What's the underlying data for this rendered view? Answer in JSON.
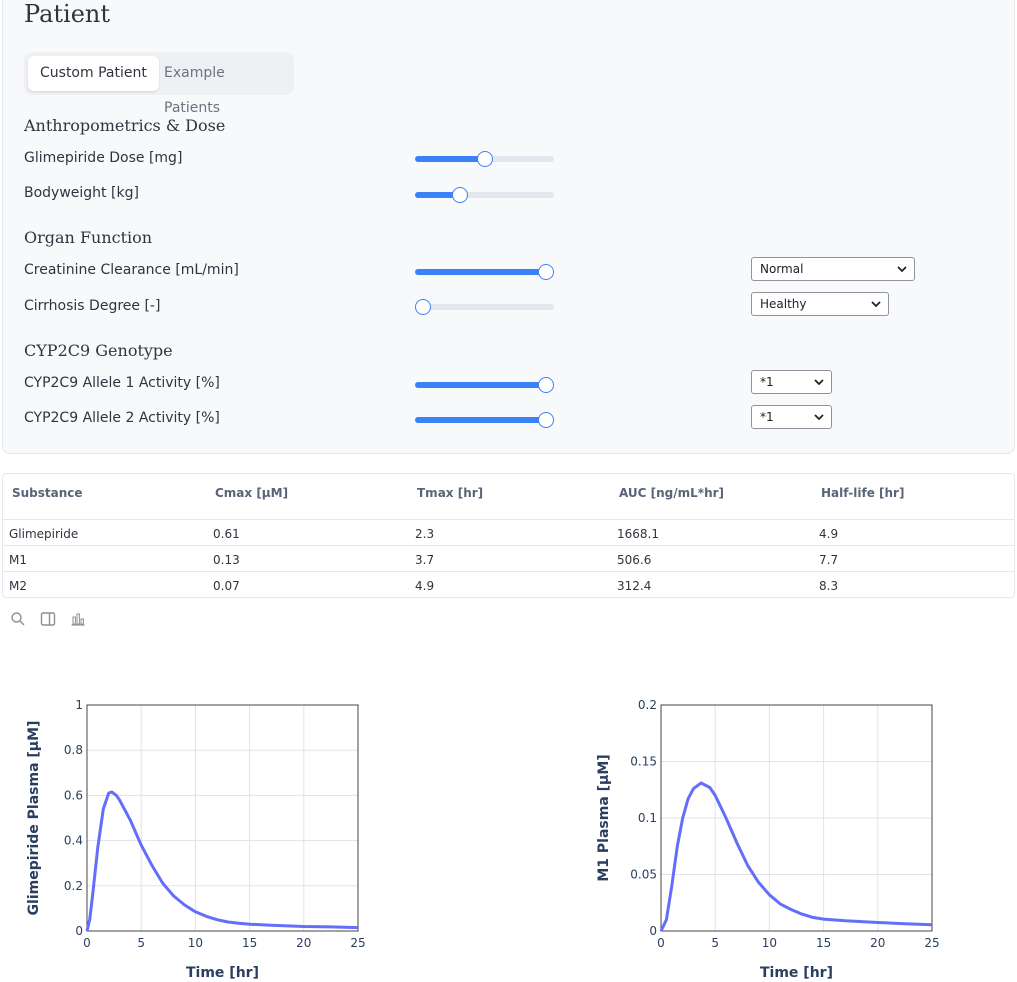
{
  "patient": {
    "title": "Patient",
    "tabs": [
      {
        "label": "Custom Patient",
        "active": true
      },
      {
        "label": "Example Patients",
        "active": false
      }
    ],
    "sections": {
      "anthropometrics": "Anthropometrics & Dose",
      "organ": "Organ Function",
      "cyp": "CYP2C9 Genotype"
    },
    "sliders": {
      "dose": {
        "label": "Glimepiride Dose [mg]",
        "level": 0.5
      },
      "bodyweight": {
        "label": "Bodyweight [kg]",
        "level": 0.3
      },
      "creatinine": {
        "label": "Creatinine Clearance [mL/min]",
        "level": 1.0
      },
      "cirrhosis": {
        "label": "Cirrhosis Degree [-]",
        "level": 0.0
      },
      "allele1": {
        "label": "CYP2C9 Allele 1 Activity [%]",
        "level": 1.0
      },
      "allele2": {
        "label": "CYP2C9 Allele 2 Activity [%]",
        "level": 1.0
      }
    },
    "selects": {
      "renal": "Normal",
      "hepatic": "Healthy",
      "allele1": "*1",
      "allele2": "*1"
    }
  },
  "results_table": {
    "headers": [
      "Substance",
      "Cmax [µM]",
      "Tmax [hr]",
      "AUC [ng/mL*hr]",
      "Half-life [hr]"
    ],
    "rows": [
      [
        "Glimepiride",
        "0.61",
        "2.3",
        "1668.1",
        "4.9"
      ],
      [
        "M1",
        "0.13",
        "3.7",
        "506.6",
        "7.7"
      ],
      [
        "M2",
        "0.07",
        "4.9",
        "312.4",
        "8.3"
      ]
    ]
  },
  "toolbar": {
    "icons": [
      "search-icon",
      "sidebar-panel-icon",
      "bar-chart-icon"
    ]
  },
  "colors": {
    "accent": "#3b82f6",
    "curve": "#636efa",
    "axis_text": "#2a3f5f"
  },
  "chart_data": [
    {
      "type": "line",
      "title": "",
      "xlabel": "Time [hr]",
      "ylabel": "Glimepiride Plasma [µM]",
      "xlim": [
        0,
        25
      ],
      "ylim": [
        0,
        1
      ],
      "xticks": [
        0,
        5,
        10,
        15,
        20,
        25
      ],
      "yticks": [
        0,
        0.2,
        0.4,
        0.6,
        0.8,
        1
      ],
      "ytick_labels": [
        "0",
        "0.2",
        "0.4",
        "0.6",
        "0.8",
        "1"
      ],
      "grid": true,
      "series": [
        {
          "x": [
            0,
            0.25,
            0.5,
            1,
            1.5,
            2,
            2.3,
            2.7,
            3,
            4,
            5,
            6,
            7,
            8,
            9,
            10,
            11,
            12,
            13,
            14,
            15,
            17,
            20,
            22.5,
            25
          ],
          "y": [
            0,
            0.05,
            0.15,
            0.37,
            0.54,
            0.61,
            0.615,
            0.6,
            0.58,
            0.49,
            0.38,
            0.29,
            0.21,
            0.155,
            0.115,
            0.085,
            0.065,
            0.05,
            0.04,
            0.034,
            0.03,
            0.025,
            0.02,
            0.018,
            0.015
          ]
        }
      ]
    },
    {
      "type": "line",
      "title": "",
      "xlabel": "Time [hr]",
      "ylabel": "M1 Plasma [µM]",
      "xlim": [
        0,
        25
      ],
      "ylim": [
        0,
        0.2
      ],
      "xticks": [
        0,
        5,
        10,
        15,
        20,
        25
      ],
      "yticks": [
        0,
        0.05,
        0.1,
        0.15,
        0.2
      ],
      "ytick_labels": [
        "0",
        "0.05",
        "0.1",
        "0.15",
        "0.2"
      ],
      "grid": true,
      "series": [
        {
          "x": [
            0,
            0.5,
            1,
            1.5,
            2,
            2.5,
            3,
            3.7,
            4.5,
            5,
            6,
            7,
            8,
            9,
            10,
            11,
            12,
            13,
            14,
            15,
            17,
            20,
            22.5,
            25
          ],
          "y": [
            0,
            0.01,
            0.04,
            0.075,
            0.1,
            0.117,
            0.126,
            0.131,
            0.127,
            0.12,
            0.1,
            0.078,
            0.058,
            0.043,
            0.032,
            0.024,
            0.019,
            0.015,
            0.012,
            0.0105,
            0.009,
            0.0075,
            0.0065,
            0.0055
          ]
        }
      ]
    }
  ]
}
